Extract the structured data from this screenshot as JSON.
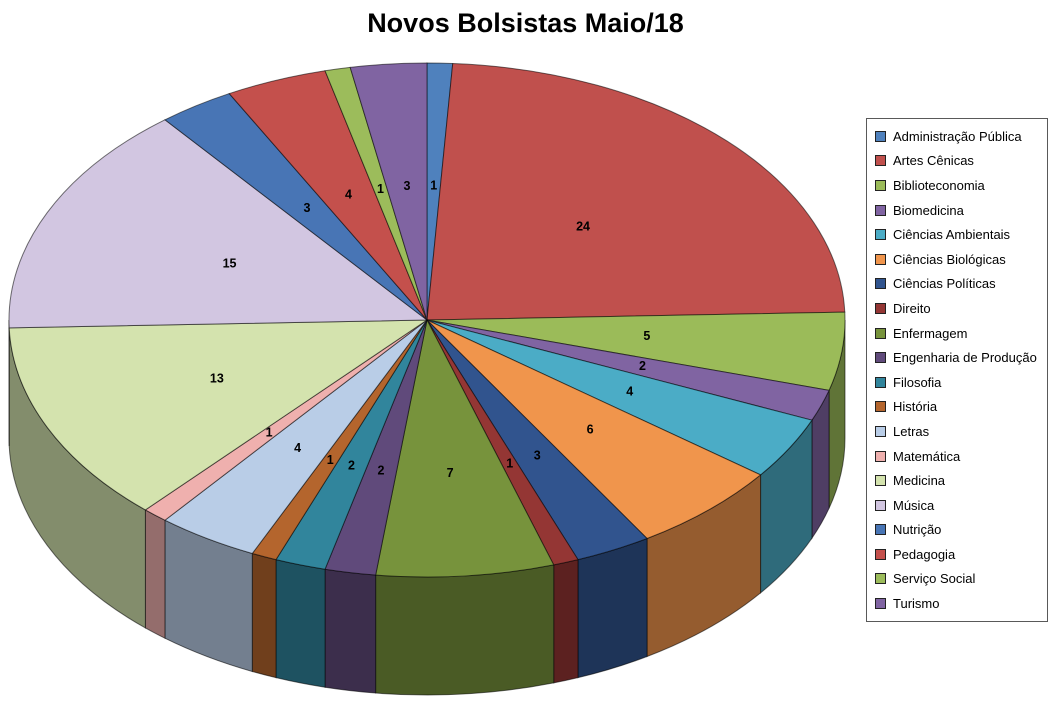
{
  "chart_data": {
    "type": "pie",
    "style": "pie-3d",
    "title": "Novos Bolsistas Maio/18",
    "legend_position": "right",
    "labels_shown": true,
    "start_angle_deg": -90,
    "direction": "clockwise",
    "categories": [
      "Administração Pública",
      "Artes Cênicas",
      "Biblioteconomia",
      "Biomedicina",
      "Ciências Ambientais",
      "Ciências Biológicas",
      "Ciências Políticas",
      "Direito",
      "Enfermagem",
      "Engenharia de Produção",
      "Filosofia",
      "História",
      "Letras",
      "Matemática",
      "Medicina",
      "Música",
      "Nutrição",
      "Pedagogia",
      "Serviço Social",
      "Turismo"
    ],
    "values": [
      1,
      24,
      5,
      2,
      4,
      6,
      3,
      1,
      7,
      2,
      2,
      1,
      4,
      1,
      13,
      15,
      3,
      4,
      1,
      3
    ],
    "colors": [
      "#4F81BD",
      "#C0504D",
      "#9BBB59",
      "#8064A2",
      "#4BACC6",
      "#F0954C",
      "#31548E",
      "#943634",
      "#77933C",
      "#604A7B",
      "#31859C",
      "#B4652D",
      "#B9CDE7",
      "#EFB0AE",
      "#D4E3AE",
      "#D2C6E1",
      "#4875B5",
      "#C4504C",
      "#9CBC5B",
      "#8064A2"
    ],
    "outline_color": "#000000",
    "background_color": "#FFFFFF"
  }
}
